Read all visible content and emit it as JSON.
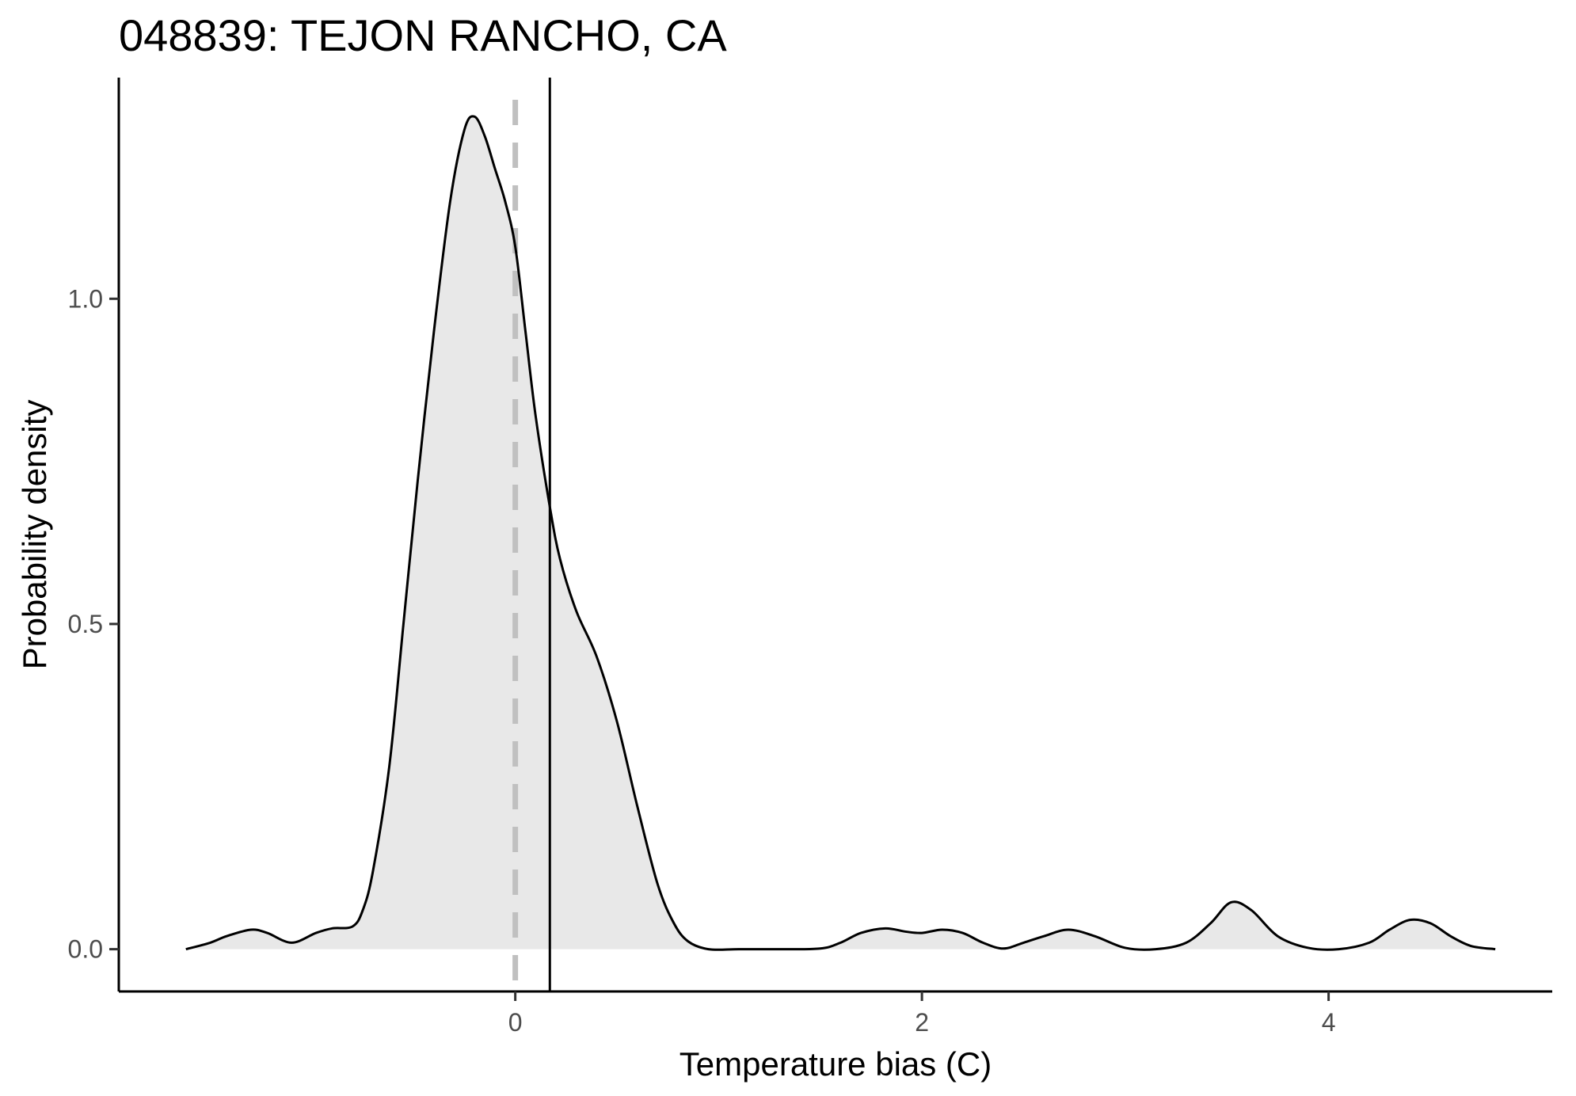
{
  "chart_data": {
    "type": "area",
    "title": "048839: TEJON RANCHO, CA",
    "xlabel": "Temperature bias (C)",
    "ylabel": "Probability density",
    "xlim": [
      -1.95,
      5.1
    ],
    "ylim": [
      -0.065,
      1.34
    ],
    "x_ticks": [
      0,
      2,
      4
    ],
    "y_ticks": [
      0.0,
      0.5,
      1.0
    ],
    "x_tick_labels": [
      "0",
      "2",
      "4"
    ],
    "y_tick_labels": [
      "0.0",
      "0.5",
      "1.0"
    ],
    "grid": false,
    "fill_color": "#e8e8e8",
    "line_color": "#000000",
    "reference_lines": [
      {
        "name": "zero",
        "x": 0,
        "style": "dashed",
        "color": "#c0c0c0"
      },
      {
        "name": "mean",
        "x": 0.17,
        "style": "solid",
        "color": "#000000"
      }
    ],
    "series": [
      {
        "x": [
          -1.62,
          -1.5,
          -1.42,
          -1.3,
          -1.22,
          -1.1,
          -0.98,
          -0.9,
          -0.8,
          -0.75,
          -0.7,
          -0.62,
          -0.55,
          -0.48,
          -0.4,
          -0.32,
          -0.25,
          -0.2,
          -0.15,
          -0.1,
          -0.05,
          0.0,
          0.05,
          0.1,
          0.17,
          0.22,
          0.3,
          0.4,
          0.5,
          0.6,
          0.7,
          0.78,
          0.85,
          0.95,
          1.1,
          1.3,
          1.5,
          1.6,
          1.7,
          1.82,
          1.92,
          2.0,
          2.1,
          2.2,
          2.3,
          2.4,
          2.5,
          2.6,
          2.72,
          2.85,
          3.0,
          3.15,
          3.3,
          3.42,
          3.52,
          3.62,
          3.75,
          3.9,
          4.05,
          4.2,
          4.3,
          4.4,
          4.5,
          4.6,
          4.7,
          4.82
        ],
        "y": [
          0.0,
          0.01,
          0.02,
          0.03,
          0.025,
          0.01,
          0.025,
          0.032,
          0.035,
          0.06,
          0.12,
          0.28,
          0.5,
          0.72,
          0.95,
          1.15,
          1.26,
          1.28,
          1.25,
          1.2,
          1.15,
          1.08,
          0.95,
          0.82,
          0.68,
          0.6,
          0.52,
          0.45,
          0.35,
          0.22,
          0.1,
          0.04,
          0.012,
          0.0,
          0.0,
          0.0,
          0.001,
          0.01,
          0.025,
          0.032,
          0.027,
          0.025,
          0.03,
          0.025,
          0.01,
          0.001,
          0.01,
          0.02,
          0.03,
          0.02,
          0.002,
          0.0,
          0.01,
          0.04,
          0.072,
          0.06,
          0.02,
          0.002,
          0.0,
          0.01,
          0.03,
          0.045,
          0.04,
          0.02,
          0.005,
          0.0
        ]
      }
    ]
  }
}
